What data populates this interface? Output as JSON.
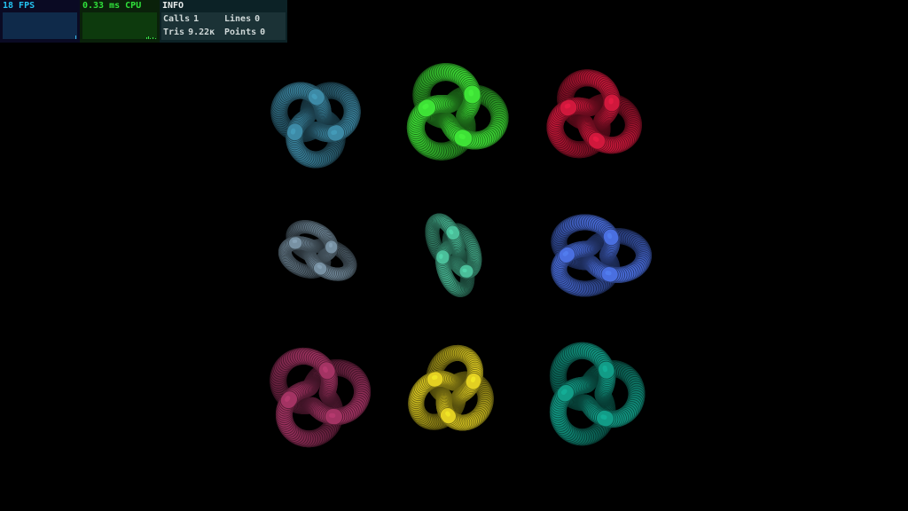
{
  "stats": {
    "fps": {
      "label": "18 FPS",
      "color": "#24c2f0"
    },
    "cpu": {
      "label": "0.33 ms CPU",
      "color": "#2fe03a"
    },
    "info": {
      "title": "INFO",
      "calls_label": "Calls",
      "calls_value": "1",
      "lines_label": "Lines",
      "lines_value": "0",
      "tris_label": "Tris",
      "tris_value": "9.22ĸ",
      "points_label": "Points",
      "points_value": "0"
    }
  },
  "knots": [
    {
      "name": "knot-teal-blue",
      "color": "#3d8aa6"
    },
    {
      "name": "knot-green",
      "color": "#3ee236"
    },
    {
      "name": "knot-red",
      "color": "#d0183c"
    },
    {
      "name": "knot-slate-gray",
      "color": "#7891a3"
    },
    {
      "name": "knot-mint",
      "color": "#4bbf9a"
    },
    {
      "name": "knot-royal-blue",
      "color": "#4a6fe0"
    },
    {
      "name": "knot-plum",
      "color": "#a33363"
    },
    {
      "name": "knot-yellow",
      "color": "#e3d022"
    },
    {
      "name": "knot-deep-teal",
      "color": "#129c87"
    }
  ]
}
